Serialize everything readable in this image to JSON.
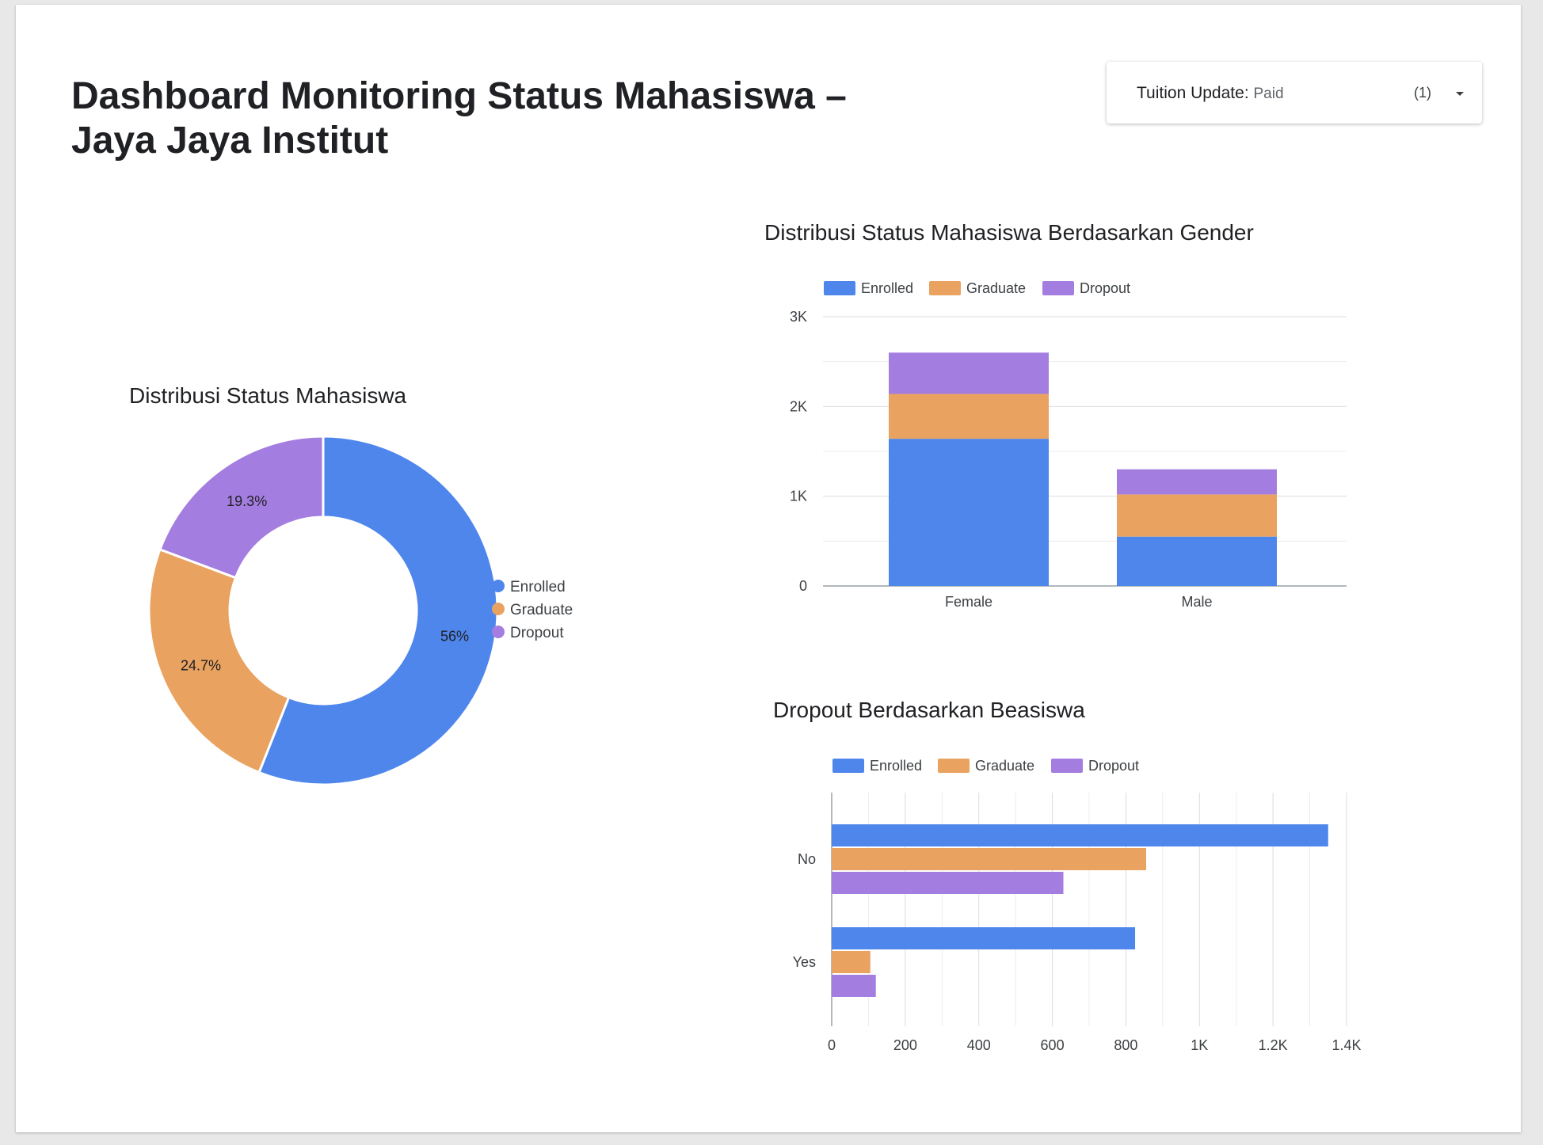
{
  "header": {
    "title_line1": "Dashboard Monitoring Status Mahasiswa –",
    "title_line2": "Jaya Jaya Institut"
  },
  "filter": {
    "label": "Tuition Update",
    "value": "Paid",
    "count": "(1)"
  },
  "colors": {
    "Enrolled": "#4f86ec",
    "Graduate": "#e9a25f",
    "Dropout": "#a47de0"
  },
  "chart_data": [
    {
      "type": "pie",
      "title": "Distribusi Status Mahasiswa",
      "donut": true,
      "categories": [
        "Enrolled",
        "Graduate",
        "Dropout"
      ],
      "values": [
        56,
        24.7,
        19.3
      ],
      "labels": [
        "56%",
        "24.7%",
        "19.3%"
      ],
      "legend": "right"
    },
    {
      "type": "bar",
      "stacked": true,
      "orientation": "vertical",
      "title": "Distribusi Status Mahasiswa Berdasarkan Gender",
      "categories": [
        "Female",
        "Male"
      ],
      "series": [
        {
          "name": "Enrolled",
          "values": [
            1640,
            550
          ]
        },
        {
          "name": "Graduate",
          "values": [
            500,
            470
          ]
        },
        {
          "name": "Dropout",
          "values": [
            460,
            280
          ]
        }
      ],
      "ylim": [
        0,
        3000
      ],
      "yticks": [
        "0",
        "1K",
        "2K",
        "3K"
      ],
      "ytick_values": [
        0,
        1000,
        2000,
        3000
      ],
      "grid": true,
      "legend": "top"
    },
    {
      "type": "bar",
      "stacked": false,
      "orientation": "horizontal",
      "title": "Dropout Berdasarkan Beasiswa",
      "categories": [
        "No",
        "Yes"
      ],
      "series": [
        {
          "name": "Enrolled",
          "values": [
            1350,
            825
          ]
        },
        {
          "name": "Graduate",
          "values": [
            855,
            105
          ]
        },
        {
          "name": "Dropout",
          "values": [
            630,
            120
          ]
        }
      ],
      "xlim": [
        0,
        1400
      ],
      "xticks": [
        "0",
        "200",
        "400",
        "600",
        "800",
        "1K",
        "1.2K",
        "1.4K"
      ],
      "xtick_values": [
        0,
        200,
        400,
        600,
        800,
        1000,
        1200,
        1400
      ],
      "grid": true,
      "legend": "top"
    }
  ]
}
